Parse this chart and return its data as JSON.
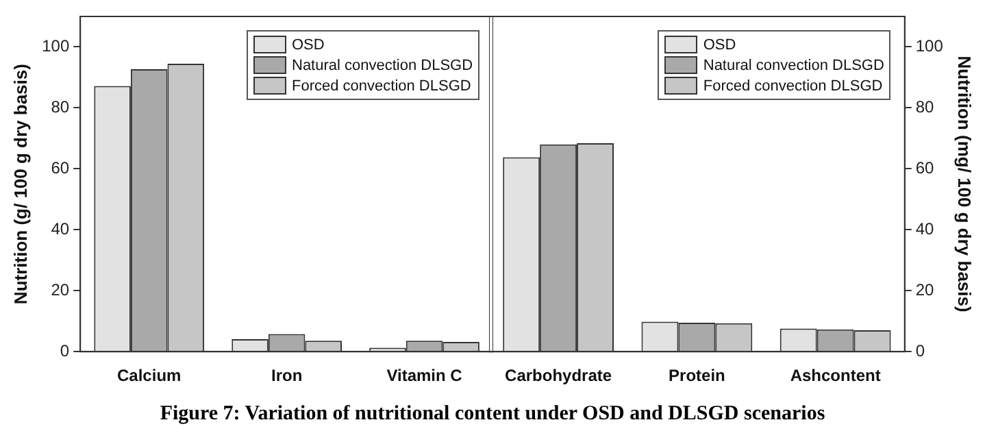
{
  "chart_data": [
    {
      "type": "bar",
      "categories": [
        "Calcium",
        "Iron",
        "Vitamin C"
      ],
      "ylabel": "Nutrition (g/ 100 g dry basis)",
      "ylim": [
        0,
        110
      ],
      "yticks": [
        0,
        20,
        40,
        60,
        80,
        100
      ],
      "legend": "top right",
      "series": [
        {
          "name": "OSD",
          "color": "#e2e2e2",
          "values": [
            87.2,
            4.1,
            1.3
          ]
        },
        {
          "name": "Natural convection DLSGD",
          "color": "#a9a9a9",
          "values": [
            92.7,
            5.8,
            3.6
          ]
        },
        {
          "name": "Forced convection DLSGD",
          "color": "#c6c6c6",
          "values": [
            94.5,
            3.6,
            3.2
          ]
        }
      ],
      "annotations": [
        "Figure 7: Variation of nutritional content under OSD and DLSGD scenarios"
      ]
    },
    {
      "type": "bar",
      "categories": [
        "Carbohydrate",
        "Protein",
        "Ashcontent"
      ],
      "y2label": "Nutrition (mg/ 100 g dry basis)",
      "y2lim": [
        0,
        110
      ],
      "y2ticks": [
        0,
        20,
        40,
        60,
        80,
        100
      ],
      "legend": "top right",
      "series": [
        {
          "name": "OSD",
          "color": "#e2e2e2",
          "axis": "y2",
          "values": [
            63.8,
            9.8,
            7.6
          ]
        },
        {
          "name": "Natural convection DLSGD",
          "color": "#a9a9a9",
          "axis": "y2",
          "values": [
            68.0,
            9.5,
            7.3
          ]
        },
        {
          "name": "Forced convection DLSGD",
          "color": "#c6c6c6",
          "axis": "y2",
          "values": [
            68.4,
            9.3,
            7.0
          ]
        }
      ]
    }
  ]
}
